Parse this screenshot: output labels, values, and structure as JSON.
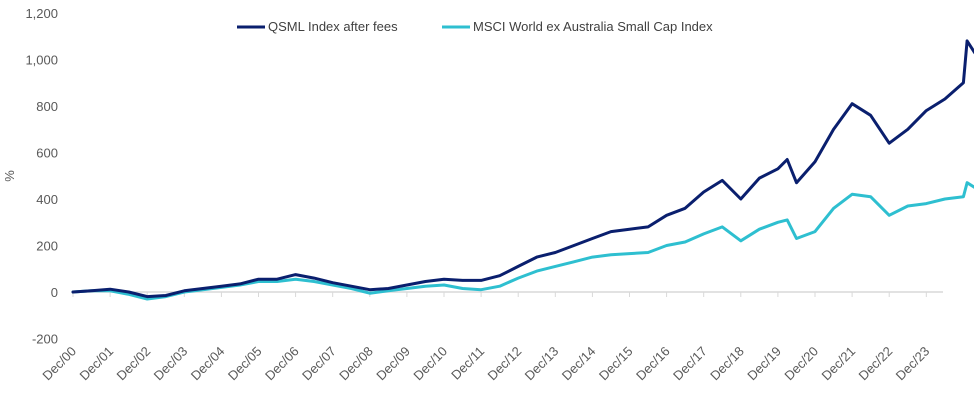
{
  "chart_data": {
    "type": "line",
    "title": "",
    "xlabel": "",
    "ylabel": "%",
    "ylim": [
      -200,
      1200
    ],
    "yticks": [
      -200,
      0,
      200,
      400,
      600,
      800,
      1000,
      1200
    ],
    "ytick_labels": [
      "-200",
      "0",
      "200",
      "400",
      "600",
      "800",
      "1,000",
      "1,200"
    ],
    "xlim": [
      2000.0,
      2024.5
    ],
    "xticks": [
      2000,
      2001,
      2002,
      2003,
      2004,
      2005,
      2006,
      2007,
      2008,
      2009,
      2010,
      2011,
      2012,
      2013,
      2014,
      2015,
      2016,
      2017,
      2018,
      2019,
      2020,
      2021,
      2022,
      2023
    ],
    "xtick_labels": [
      "Dec/00",
      "Dec/01",
      "Dec/02",
      "Dec/03",
      "Dec/04",
      "Dec/05",
      "Dec/06",
      "Dec/07",
      "Dec/08",
      "Dec/09",
      "Dec/10",
      "Dec/11",
      "Dec/12",
      "Dec/13",
      "Dec/14",
      "Dec/15",
      "Dec/16",
      "Dec/17",
      "Dec/18",
      "Dec/19",
      "Dec/20",
      "Dec/21",
      "Dec/22",
      "Dec/23"
    ],
    "grid": false,
    "legend_position": "top-center",
    "x": [
      2000.0,
      2000.5,
      2001.0,
      2001.5,
      2002.0,
      2002.5,
      2003.0,
      2003.5,
      2004.0,
      2004.5,
      2005.0,
      2005.5,
      2006.0,
      2006.5,
      2007.0,
      2007.5,
      2008.0,
      2008.5,
      2009.0,
      2009.5,
      2010.0,
      2010.5,
      2011.0,
      2011.5,
      2012.0,
      2012.5,
      2013.0,
      2013.5,
      2014.0,
      2014.5,
      2015.0,
      2015.5,
      2016.0,
      2016.5,
      2017.0,
      2017.5,
      2018.0,
      2018.5,
      2019.0,
      2019.25,
      2019.5,
      2020.0,
      2020.5,
      2021.0,
      2021.5,
      2022.0,
      2022.5,
      2023.0,
      2023.5,
      2024.0,
      2024.1,
      2024.3,
      2024.4
    ],
    "series": [
      {
        "name": "QSML Index after fees",
        "color": "#0a1f6e",
        "values": [
          0,
          5,
          12,
          0,
          -20,
          -15,
          5,
          15,
          25,
          35,
          55,
          55,
          75,
          60,
          40,
          25,
          10,
          15,
          30,
          45,
          55,
          50,
          50,
          70,
          110,
          150,
          170,
          200,
          230,
          260,
          270,
          280,
          330,
          360,
          430,
          480,
          400,
          490,
          530,
          570,
          470,
          560,
          700,
          810,
          760,
          640,
          700,
          780,
          830,
          900,
          1080,
          1030,
          1010
        ]
      },
      {
        "name": "MSCI World ex Australia Small Cap Index",
        "color": "#2ebfd0",
        "values": [
          0,
          5,
          5,
          -10,
          -30,
          -20,
          0,
          10,
          20,
          30,
          45,
          45,
          55,
          45,
          30,
          15,
          -5,
          5,
          15,
          25,
          30,
          15,
          10,
          25,
          60,
          90,
          110,
          130,
          150,
          160,
          165,
          170,
          200,
          215,
          250,
          280,
          220,
          270,
          300,
          310,
          230,
          260,
          360,
          420,
          410,
          330,
          370,
          380,
          400,
          410,
          470,
          450,
          445
        ]
      }
    ]
  }
}
